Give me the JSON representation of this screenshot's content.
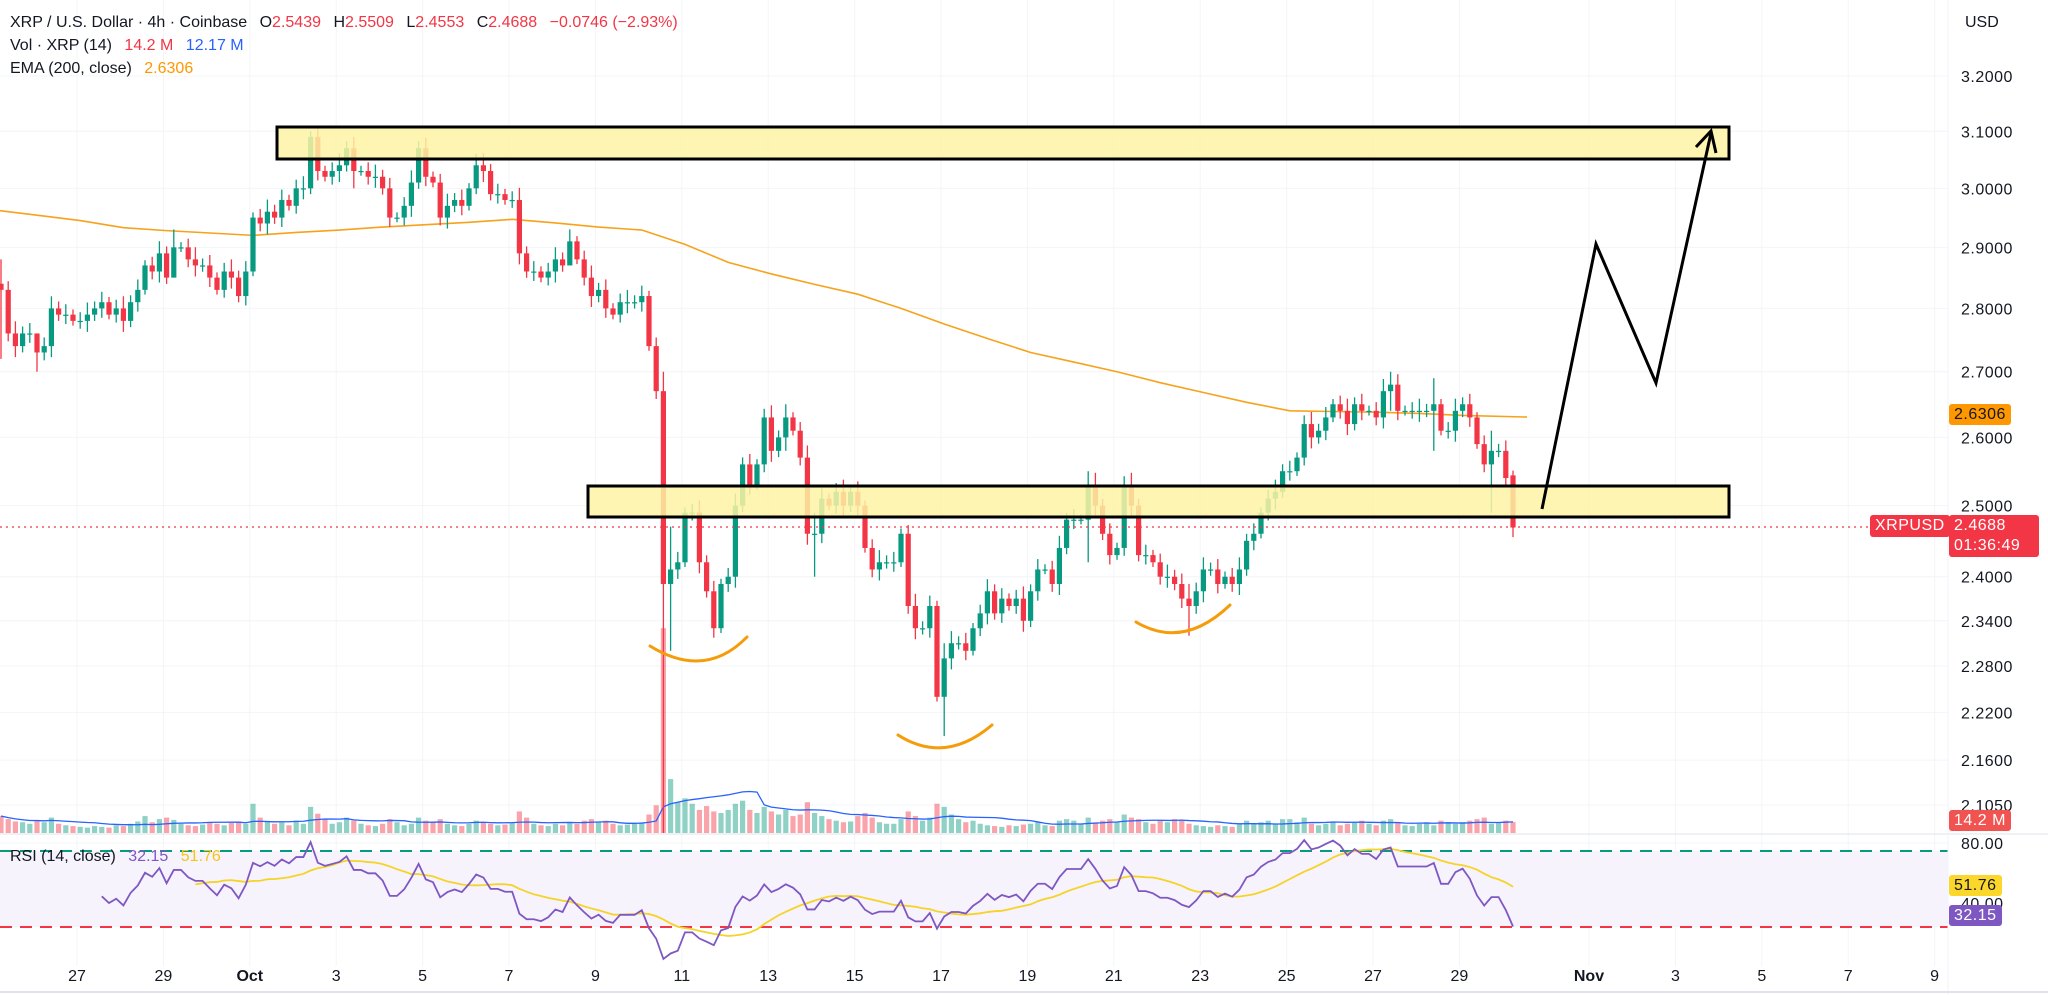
{
  "header": {
    "symbol": "XRP / U.S. Dollar · 4h · Coinbase",
    "o_label": "O",
    "o": "2.5439",
    "h_label": "H",
    "h": "2.5509",
    "l_label": "L",
    "l": "2.4553",
    "c_label": "C",
    "c": "2.4688",
    "change": "−0.0746 (−2.93%)",
    "vol_label": "Vol · XRP (14)",
    "vol": "14.2 M",
    "vol_ma": "12.17 M",
    "ema_label": "EMA (200, close)",
    "ema": "2.6306",
    "currency": "USD"
  },
  "rsi_legend": {
    "label": "RSI (14, close)",
    "rsi": "32.15",
    "rsi_ma": "51.76"
  },
  "tags": {
    "ema": "2.6306",
    "symbol": "XRPUSD",
    "price": "2.4688",
    "countdown": "01:36:49",
    "volume": "14.2 M",
    "rsi_ma": "51.76",
    "rsi": "32.15"
  },
  "colors": {
    "up": "#089981",
    "down": "#f23645",
    "ema": "#f7a21b",
    "vol_ma": "#2962ff",
    "rsi": "#7e57c2",
    "rsi_ma": "#f5d327",
    "zone_fill": "#fdf3a3",
    "annotation_arc": "#f59c0b",
    "rsi_upper_band": "#089981",
    "rsi_lower_band": "#f23645"
  },
  "chart_data": {
    "type": "candlestick",
    "interval": "4h",
    "y_scale": "log",
    "ylim": [
      2.105,
      3.2
    ],
    "price_ticks": [
      "3.2000",
      "3.1000",
      "3.0000",
      "2.9000",
      "2.8000",
      "2.7000",
      "2.6000",
      "2.5000",
      "2.4000",
      "2.3400",
      "2.2800",
      "2.2200",
      "2.1600",
      "2.1050"
    ],
    "rsi_ticks": [
      "80.00",
      "40.00"
    ],
    "rsi_bands": [
      70,
      30
    ],
    "date_ticks": [
      {
        "label": "27",
        "date": "Sep 27"
      },
      {
        "label": "29",
        "date": "Sep 29"
      },
      {
        "label": "Oct",
        "date": "Oct 1"
      },
      {
        "label": "3",
        "date": "Oct 3"
      },
      {
        "label": "5",
        "date": "Oct 5"
      },
      {
        "label": "7",
        "date": "Oct 7"
      },
      {
        "label": "9",
        "date": "Oct 9"
      },
      {
        "label": "11",
        "date": "Oct 11"
      },
      {
        "label": "13",
        "date": "Oct 13"
      },
      {
        "label": "15",
        "date": "Oct 15"
      },
      {
        "label": "17",
        "date": "Oct 17"
      },
      {
        "label": "19",
        "date": "Oct 19"
      },
      {
        "label": "21",
        "date": "Oct 21"
      },
      {
        "label": "23",
        "date": "Oct 23"
      },
      {
        "label": "25",
        "date": "Oct 25"
      },
      {
        "label": "27",
        "date": "Oct 27"
      },
      {
        "label": "29",
        "date": "Oct 29"
      },
      {
        "label": "Nov",
        "date": "Nov 1"
      },
      {
        "label": "3",
        "date": "Nov 3"
      },
      {
        "label": "5",
        "date": "Nov 5"
      },
      {
        "label": "7",
        "date": "Nov 7"
      },
      {
        "label": "9",
        "date": "Nov 9"
      }
    ],
    "days": [
      {
        "d": "Sep 25",
        "c": [
          2.83,
          2.76,
          2.74,
          2.76,
          2.76
        ],
        "v": [
          22,
          18,
          15,
          14,
          12
        ],
        "hl": [
          [
            0,
            2.88,
            2.72
          ]
        ]
      },
      {
        "d": "Sep 26",
        "c": [
          2.73,
          2.74,
          2.8,
          2.79,
          2.79,
          2.78
        ],
        "v": [
          16,
          14,
          20,
          12,
          10,
          9
        ],
        "hl": [
          [
            0,
            2.76,
            2.7
          ]
        ]
      },
      {
        "d": "Sep 27",
        "c": [
          2.78,
          2.79,
          2.8,
          2.81,
          2.79,
          2.8
        ],
        "v": [
          8,
          7,
          9,
          8,
          7,
          10
        ]
      },
      {
        "d": "Sep 28",
        "c": [
          2.78,
          2.81,
          2.83,
          2.87,
          2.86,
          2.89
        ],
        "v": [
          9,
          12,
          15,
          22,
          14,
          18
        ]
      },
      {
        "d": "Sep 29",
        "c": [
          2.85,
          2.9,
          2.9,
          2.88,
          2.87,
          2.87
        ],
        "v": [
          20,
          17,
          12,
          10,
          9,
          11
        ],
        "hl": [
          [
            1,
            2.93,
            2.85
          ]
        ]
      },
      {
        "d": "Sep 30",
        "c": [
          2.85,
          2.83,
          2.86,
          2.85,
          2.82,
          2.86
        ],
        "v": [
          14,
          12,
          10,
          13,
          15,
          12
        ]
      },
      {
        "d": "Oct 1",
        "c": [
          2.95,
          2.94,
          2.96,
          2.95,
          2.98,
          2.97
        ],
        "v": [
          38,
          20,
          15,
          12,
          14,
          10
        ]
      },
      {
        "d": "Oct 2",
        "c": [
          3.0,
          3.0,
          3.09,
          3.03,
          3.02,
          3.03
        ],
        "v": [
          16,
          12,
          34,
          25,
          18,
          12
        ],
        "hl": [
          [
            2,
            3.1,
            2.99
          ]
        ]
      },
      {
        "d": "Oct 3",
        "c": [
          3.04,
          3.07,
          3.03,
          3.03,
          3.02,
          3.02
        ],
        "v": [
          14,
          20,
          16,
          12,
          10,
          9
        ],
        "hl": [
          [
            2,
            3.09,
            3.0
          ]
        ]
      },
      {
        "d": "Oct 4",
        "c": [
          3.0,
          2.95,
          2.95,
          2.97,
          3.01,
          3.07
        ],
        "v": [
          12,
          18,
          14,
          10,
          12,
          20
        ]
      },
      {
        "d": "Oct 5",
        "c": [
          3.02,
          3.01,
          2.95,
          2.97,
          2.98,
          2.97
        ],
        "v": [
          16,
          14,
          18,
          12,
          10,
          9
        ]
      },
      {
        "d": "Oct 6",
        "c": [
          3.0,
          3.04,
          3.03,
          2.99,
          2.99,
          2.98
        ],
        "v": [
          12,
          16,
          14,
          12,
          10,
          11
        ],
        "hl": [
          [
            1,
            3.06,
            2.99
          ]
        ]
      },
      {
        "d": "Oct 7",
        "c": [
          2.98,
          2.89,
          2.86,
          2.86,
          2.85,
          2.86
        ],
        "v": [
          14,
          28,
          20,
          12,
          10,
          9
        ]
      },
      {
        "d": "Oct 8",
        "c": [
          2.88,
          2.87,
          2.91,
          2.88,
          2.85,
          2.82
        ],
        "v": [
          12,
          10,
          14,
          12,
          16,
          18
        ],
        "hl": [
          [
            2,
            2.93,
            2.87
          ]
        ]
      },
      {
        "d": "Oct 9",
        "c": [
          2.83,
          2.8,
          2.79,
          2.81,
          2.81,
          2.81
        ],
        "v": [
          14,
          16,
          12,
          10,
          11,
          12
        ]
      },
      {
        "d": "Oct 10",
        "c": [
          2.82,
          2.74,
          2.67,
          2.39,
          2.41,
          2.42
        ],
        "v": [
          14,
          24,
          36,
          266,
          70,
          40
        ],
        "hl": [
          [
            3,
            2.7,
            2.07
          ],
          [
            4,
            2.47,
            2.3
          ]
        ]
      },
      {
        "d": "Oct 11",
        "c": [
          2.49,
          2.49,
          2.42,
          2.38,
          2.33,
          2.39
        ],
        "v": [
          45,
          38,
          30,
          35,
          28,
          26
        ]
      },
      {
        "d": "Oct 12",
        "c": [
          2.4,
          2.5,
          2.56,
          2.53,
          2.56,
          2.63
        ],
        "v": [
          30,
          38,
          42,
          30,
          26,
          34
        ]
      },
      {
        "d": "Oct 13",
        "c": [
          2.58,
          2.6,
          2.63,
          2.61,
          2.57,
          2.46
        ],
        "v": [
          28,
          24,
          30,
          22,
          24,
          40
        ],
        "hl": [
          [
            2,
            2.65,
            2.58
          ]
        ]
      },
      {
        "d": "Oct 14",
        "c": [
          2.46,
          2.51,
          2.5,
          2.52,
          2.5,
          2.52
        ],
        "v": [
          26,
          22,
          18,
          16,
          14,
          15
        ],
        "hl": [
          [
            0,
            2.49,
            2.4
          ]
        ]
      },
      {
        "d": "Oct 15",
        "c": [
          2.5,
          2.44,
          2.41,
          2.42,
          2.42,
          2.42
        ],
        "v": [
          22,
          26,
          20,
          14,
          12,
          12
        ]
      },
      {
        "d": "Oct 16",
        "c": [
          2.46,
          2.36,
          2.33,
          2.33,
          2.36,
          2.24
        ],
        "v": [
          18,
          28,
          22,
          16,
          20,
          38
        ]
      },
      {
        "d": "Oct 17",
        "c": [
          2.29,
          2.31,
          2.31,
          2.3,
          2.33,
          2.35
        ],
        "v": [
          34,
          24,
          18,
          14,
          16,
          12
        ],
        "hl": [
          [
            0,
            2.31,
            2.19
          ]
        ]
      },
      {
        "d": "Oct 18",
        "c": [
          2.38,
          2.35,
          2.37,
          2.36,
          2.37,
          2.34
        ],
        "v": [
          10,
          9,
          8,
          10,
          9,
          11
        ]
      },
      {
        "d": "Oct 19",
        "c": [
          2.38,
          2.41,
          2.41,
          2.39,
          2.44,
          2.48
        ],
        "v": [
          12,
          14,
          10,
          9,
          16,
          18
        ]
      },
      {
        "d": "Oct 20",
        "c": [
          2.48,
          2.48,
          2.53,
          2.5,
          2.46,
          2.43
        ],
        "v": [
          16,
          12,
          20,
          14,
          16,
          18
        ],
        "hl": [
          [
            2,
            2.55,
            2.42
          ]
        ]
      },
      {
        "d": "Oct 21",
        "c": [
          2.44,
          2.53,
          2.5,
          2.43,
          2.43,
          2.42
        ],
        "v": [
          14,
          24,
          20,
          18,
          14,
          12
        ]
      },
      {
        "d": "Oct 22",
        "c": [
          2.4,
          2.4,
          2.39,
          2.37,
          2.36,
          2.38
        ],
        "v": [
          16,
          14,
          18,
          16,
          12,
          10
        ],
        "hl": [
          [
            4,
            2.39,
            2.32
          ]
        ]
      },
      {
        "d": "Oct 23",
        "c": [
          2.41,
          2.41,
          2.39,
          2.4,
          2.39,
          2.41
        ],
        "v": [
          9,
          8,
          10,
          9,
          8,
          11
        ]
      },
      {
        "d": "Oct 24",
        "c": [
          2.45,
          2.46,
          2.49,
          2.51,
          2.52,
          2.55
        ],
        "v": [
          16,
          12,
          14,
          16,
          12,
          18
        ]
      },
      {
        "d": "Oct 25",
        "c": [
          2.55,
          2.57,
          2.62,
          2.6,
          2.61,
          2.63
        ],
        "v": [
          18,
          14,
          20,
          12,
          10,
          12
        ]
      },
      {
        "d": "Oct 26",
        "c": [
          2.65,
          2.64,
          2.62,
          2.65,
          2.64,
          2.64
        ],
        "v": [
          14,
          10,
          12,
          14,
          16,
          12
        ]
      },
      {
        "d": "Oct 27",
        "c": [
          2.63,
          2.67,
          2.68,
          2.64,
          2.64,
          2.64
        ],
        "v": [
          10,
          16,
          18,
          14,
          10,
          9
        ],
        "hl": [
          [
            2,
            2.7,
            2.64
          ]
        ]
      },
      {
        "d": "Oct 28",
        "c": [
          2.64,
          2.64,
          2.65,
          2.61,
          2.61,
          2.64
        ],
        "v": [
          12,
          14,
          10,
          16,
          14,
          12
        ],
        "hl": [
          [
            2,
            2.69,
            2.58
          ]
        ]
      },
      {
        "d": "Oct 29",
        "c": [
          2.65,
          2.63,
          2.59,
          2.56,
          2.58,
          2.58
        ],
        "v": [
          14,
          16,
          18,
          20,
          12,
          14
        ],
        "hl": [
          [
            4,
            2.61,
            2.49
          ]
        ]
      },
      {
        "d": "Oct 30",
        "c": [
          2.54,
          2.4688
        ],
        "v": [
          16,
          14.2
        ],
        "hl": [
          [
            1,
            2.5509,
            2.4553
          ]
        ]
      }
    ],
    "ema200_daily": [
      [
        "Sep 25",
        2.963
      ],
      [
        "Sep 26",
        2.954
      ],
      [
        "Sep 27",
        2.945
      ],
      [
        "Sep 28",
        2.933
      ],
      [
        "Sep 29",
        2.928
      ],
      [
        "Sep 30",
        2.924
      ],
      [
        "Oct 1",
        2.92
      ],
      [
        "Oct 2",
        2.925
      ],
      [
        "Oct 3",
        2.929
      ],
      [
        "Oct 4",
        2.934
      ],
      [
        "Oct 5",
        2.938
      ],
      [
        "Oct 6",
        2.942
      ],
      [
        "Oct 7",
        2.947
      ],
      [
        "Oct 8",
        2.941
      ],
      [
        "Oct 9",
        2.934
      ],
      [
        "Oct 10",
        2.929
      ],
      [
        "Oct 11",
        2.905
      ],
      [
        "Oct 12",
        2.875
      ],
      [
        "Oct 13",
        2.856
      ],
      [
        "Oct 14",
        2.839
      ],
      [
        "Oct 15",
        2.823
      ],
      [
        "Oct 16",
        2.8
      ],
      [
        "Oct 17",
        2.775
      ],
      [
        "Oct 18",
        2.752
      ],
      [
        "Oct 19",
        2.73
      ],
      [
        "Oct 20",
        2.715
      ],
      [
        "Oct 21",
        2.7
      ],
      [
        "Oct 22",
        2.683
      ],
      [
        "Oct 23",
        2.668
      ],
      [
        "Oct 24",
        2.653
      ],
      [
        "Oct 25",
        2.64
      ],
      [
        "Oct 26",
        2.639
      ],
      [
        "Oct 27",
        2.638
      ],
      [
        "Oct 28",
        2.636
      ],
      [
        "Oct 29",
        2.633
      ],
      [
        "Oct 30",
        2.6306
      ]
    ]
  }
}
